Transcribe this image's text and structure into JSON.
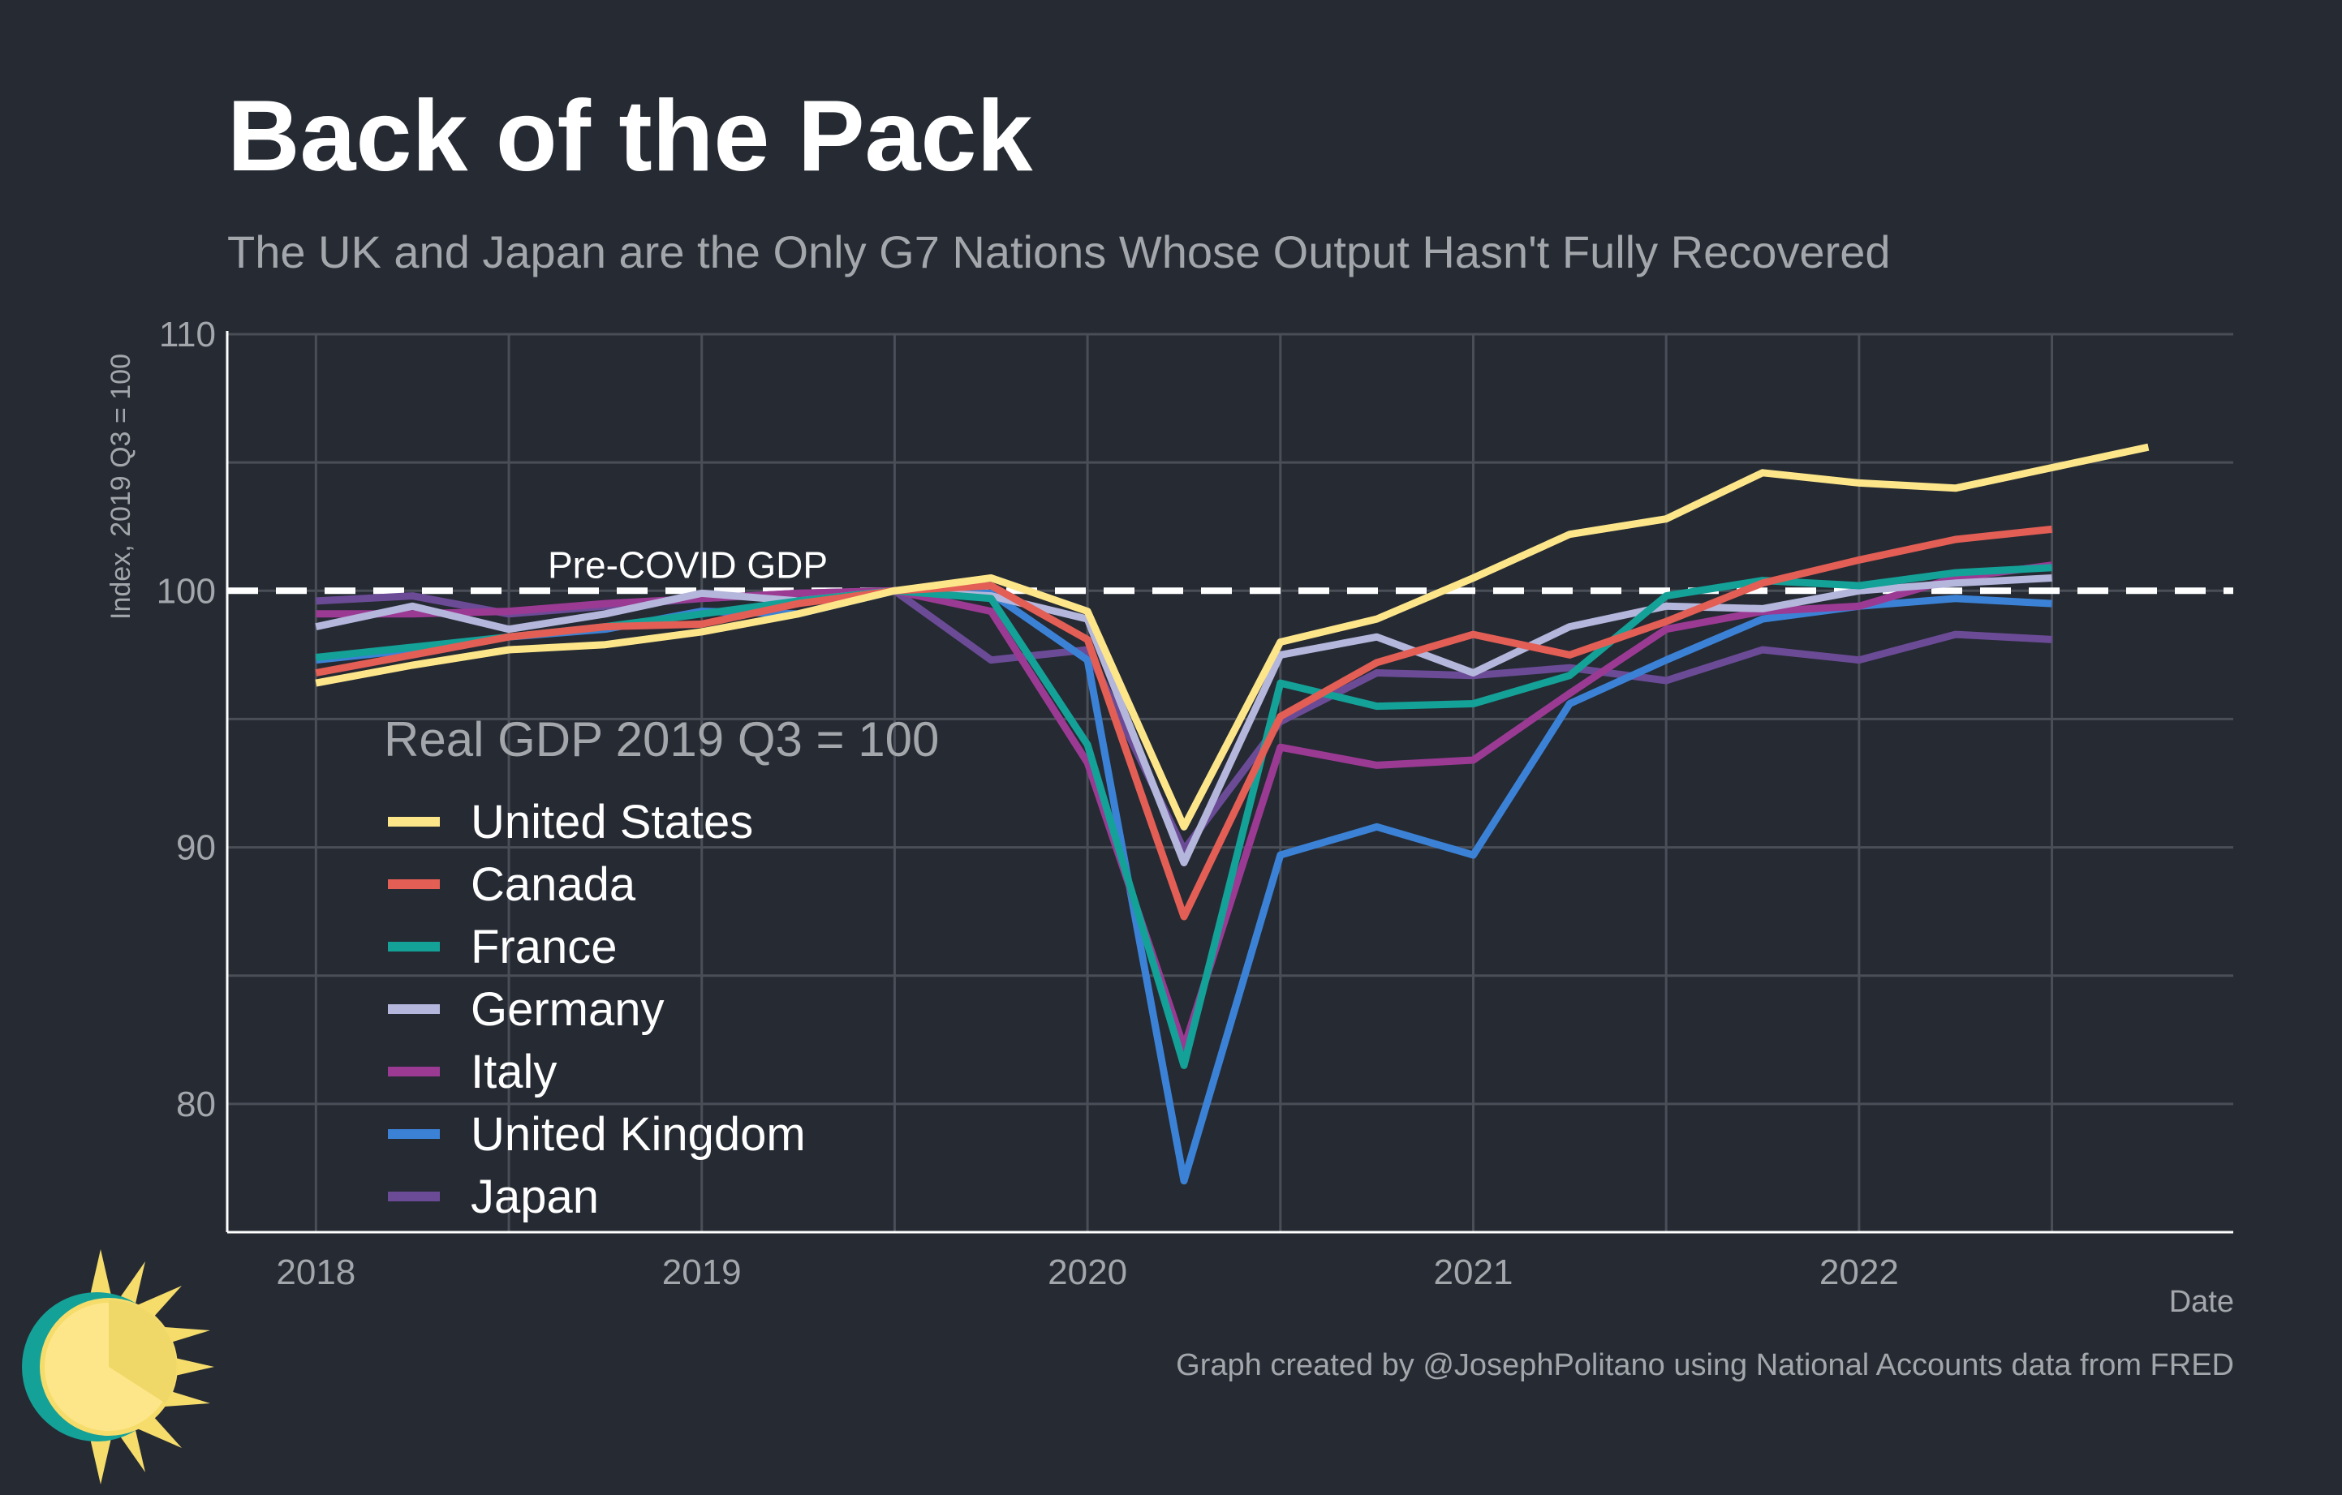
{
  "title": "Back of the Pack",
  "subtitle": "The UK and Japan are the Only G7 Nations Whose Output Hasn't Fully Recovered",
  "caption": "Graph created by @JosephPolitano using National Accounts data from FRED",
  "colors": {
    "background": "#252a33",
    "grid": "#4a4e57",
    "axis": "#ffffff",
    "reference_line": "#ffffff"
  },
  "logo": {
    "icon": "sun-logo-icon"
  },
  "chart_data": {
    "type": "line",
    "title": "Back of the Pack",
    "subtitle": "The UK and Japan are the Only G7 Nations Whose Output Hasn't Fully Recovered",
    "xlabel": "Date",
    "ylabel": "Index, 2019 Q3 = 100",
    "xlim": [
      2017.77,
      2022.97
    ],
    "ylim": [
      75,
      110
    ],
    "x_ticks": [
      2018,
      2019,
      2020,
      2021,
      2022
    ],
    "x_tick_labels": [
      "2018",
      "2019",
      "2020",
      "2021",
      "2022"
    ],
    "y_ticks": [
      80,
      90,
      100,
      110
    ],
    "y_tick_labels": [
      "80",
      "90",
      "100",
      "110"
    ],
    "grid": true,
    "legend": {
      "title": "Real GDP 2019 Q3 = 100",
      "placement": "inside-left"
    },
    "reference_line": {
      "y": 100,
      "label": "Pre-COVID GDP",
      "style": "dashed"
    },
    "x": [
      "2018 Q1",
      "2018 Q2",
      "2018 Q3",
      "2018 Q4",
      "2019 Q1",
      "2019 Q2",
      "2019 Q3",
      "2019 Q4",
      "2020 Q1",
      "2020 Q2",
      "2020 Q3",
      "2020 Q4",
      "2021 Q1",
      "2021 Q2",
      "2021 Q3",
      "2021 Q4",
      "2022 Q1",
      "2022 Q2",
      "2022 Q3",
      "2022 Q4"
    ],
    "series": [
      {
        "name": "Japan",
        "color": "#6b4b96",
        "values": [
          99.6,
          99.8,
          99.1,
          99.4,
          99.7,
          99.9,
          100,
          97.3,
          97.7,
          89.9,
          94.9,
          96.8,
          96.7,
          97.0,
          96.5,
          97.7,
          97.3,
          98.3,
          98.1,
          null
        ]
      },
      {
        "name": "United Kingdom",
        "color": "#3b82d6",
        "values": [
          97.3,
          97.7,
          98.2,
          98.5,
          99.2,
          99.1,
          100,
          99.9,
          97.3,
          77.0,
          89.7,
          90.8,
          89.7,
          95.6,
          97.3,
          98.9,
          99.4,
          99.7,
          99.5,
          null
        ]
      },
      {
        "name": "Italy",
        "color": "#9b3a93",
        "values": [
          99.1,
          99.1,
          99.2,
          99.5,
          99.7,
          99.9,
          100,
          99.2,
          93.3,
          82.2,
          93.9,
          93.2,
          93.4,
          96.0,
          98.5,
          99.2,
          99.4,
          100.5,
          101.0,
          null
        ]
      },
      {
        "name": "Germany",
        "color": "#b4b6dc",
        "values": [
          98.6,
          99.4,
          98.5,
          99.1,
          99.9,
          99.6,
          100,
          99.8,
          98.9,
          89.4,
          97.5,
          98.2,
          96.8,
          98.6,
          99.4,
          99.3,
          100.0,
          100.3,
          100.5,
          null
        ]
      },
      {
        "name": "France",
        "color": "#14a197",
        "values": [
          97.4,
          97.8,
          98.2,
          98.6,
          99.1,
          99.6,
          100,
          99.7,
          94.0,
          81.5,
          96.4,
          95.5,
          95.6,
          96.7,
          99.8,
          100.4,
          100.2,
          100.7,
          100.9,
          null
        ]
      },
      {
        "name": "Canada",
        "color": "#e35e55",
        "values": [
          96.8,
          97.5,
          98.2,
          98.6,
          98.7,
          99.5,
          100,
          100.2,
          98.1,
          87.3,
          95.1,
          97.2,
          98.3,
          97.5,
          98.8,
          100.3,
          101.2,
          102.0,
          102.4,
          null
        ]
      },
      {
        "name": "United States",
        "color": "#fde68a",
        "values": [
          96.4,
          97.1,
          97.7,
          97.9,
          98.4,
          99.1,
          100,
          100.5,
          99.2,
          90.8,
          98.0,
          98.9,
          100.5,
          102.2,
          102.8,
          104.6,
          104.2,
          104.0,
          104.8,
          105.6
        ]
      }
    ]
  }
}
